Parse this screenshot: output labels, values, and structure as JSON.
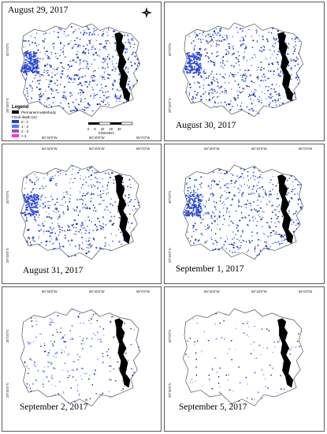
{
  "panels": [
    {
      "date": "August 29, 2017",
      "intensity": 1.0,
      "label_pos": "top",
      "has_legend": true
    },
    {
      "date": "August 30, 2017",
      "intensity": 0.95,
      "label_pos": "middle-right",
      "has_legend": false
    },
    {
      "date": "August 31, 2017",
      "intensity": 0.85,
      "label_pos": "bottom-left",
      "has_legend": false
    },
    {
      "date": "September 1, 2017",
      "intensity": 0.9,
      "label_pos": "bottom-right",
      "has_legend": false
    },
    {
      "date": "September 2, 2017",
      "intensity": 0.35,
      "label_pos": "bottom-left",
      "has_legend": false
    },
    {
      "date": "September 5, 2017",
      "intensity": 0.15,
      "label_pos": "bottom-right",
      "has_legend": false
    }
  ],
  "ticks": {
    "lon": [
      "95°40'0\"W",
      "95°20'0\"W",
      "95°0'0\"W"
    ],
    "lat": [
      "30°0'0\"N",
      "29°40'0\"N"
    ]
  },
  "legend": {
    "title": "Legend",
    "items": [
      {
        "label": "Permanent waterbody",
        "color": "#000000"
      },
      {
        "label": "Flood depth (m)",
        "color": ""
      },
      {
        "label": "0 - 1",
        "color": "#1f3fd6"
      },
      {
        "label": "1 - 2",
        "color": "#4a78ff"
      },
      {
        "label": "2 - 3",
        "color": "#9b4bd8"
      },
      {
        "label": "> 3",
        "color": "#ff33cc"
      }
    ]
  },
  "scale": {
    "labels": [
      "0",
      "5",
      "10",
      "20",
      "30"
    ],
    "unit": "Kilometers"
  },
  "colors": {
    "border": "#5a5a5a",
    "flood": "#2f4fe0",
    "water": "#000000",
    "land": "#ffffff",
    "outline": "#555555"
  }
}
